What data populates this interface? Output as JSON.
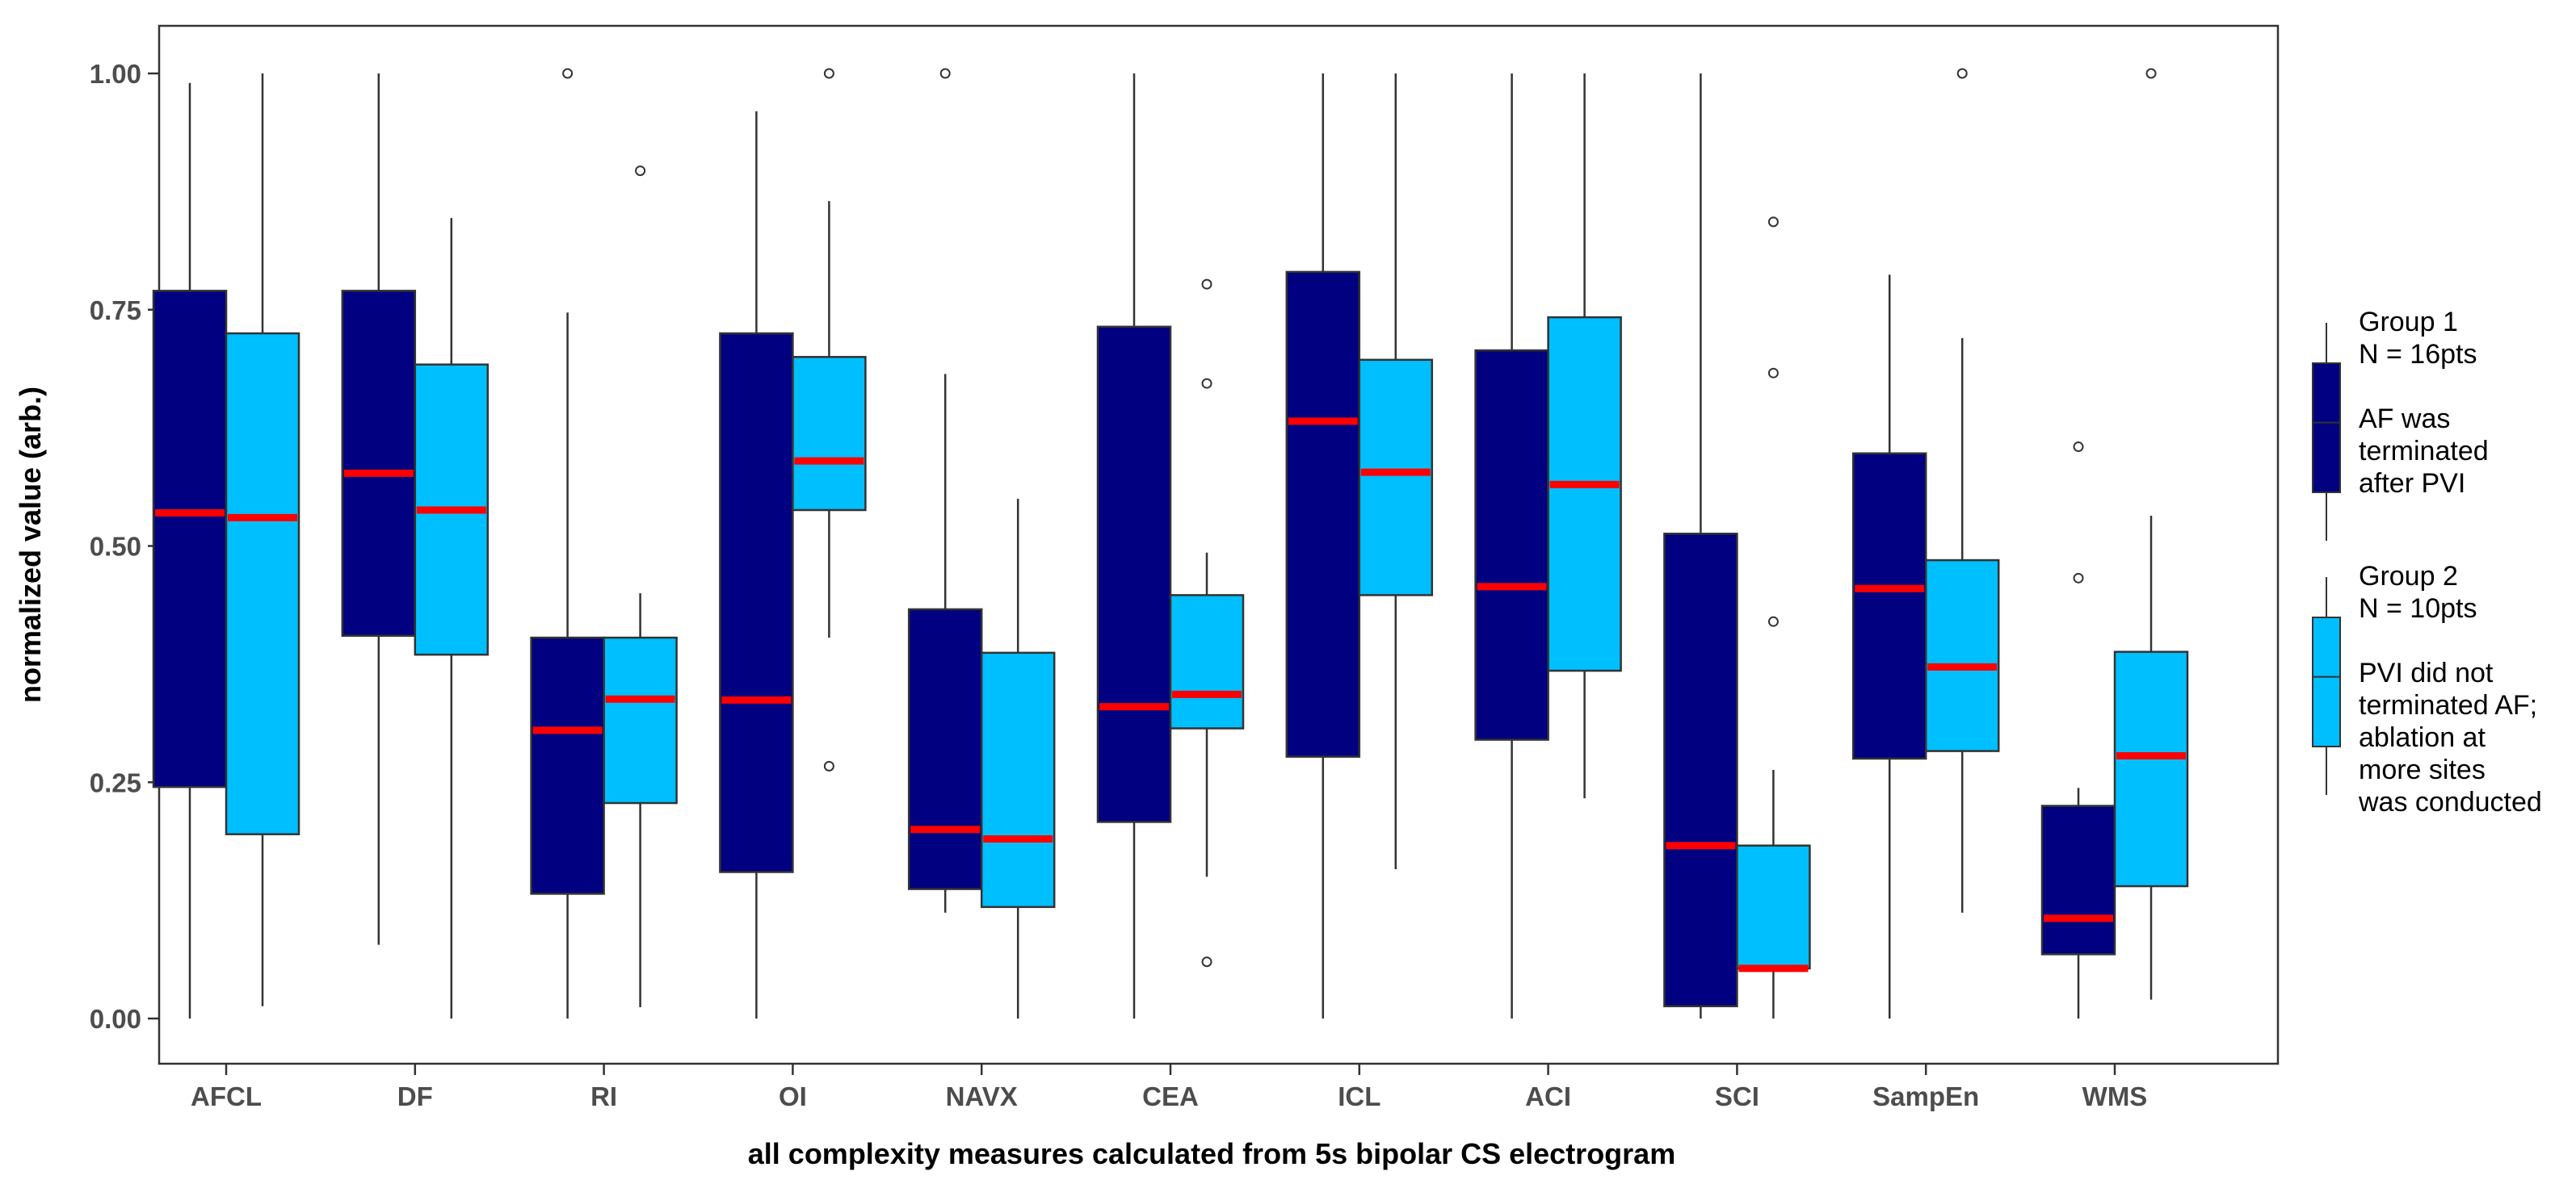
{
  "chart_data": {
    "type": "boxplot",
    "title": "",
    "xlabel": "all complexity measures calculated from 5s bipolar CS electrogram",
    "ylabel": "normalized value (arb.)",
    "ylim": [
      -0.05,
      1.05
    ],
    "yticks": [
      0.0,
      0.25,
      0.5,
      0.75,
      1.0
    ],
    "ytick_labels": [
      "0.00",
      "0.25",
      "0.50",
      "0.75",
      "1.00"
    ],
    "categories": [
      "AFCL",
      "DF",
      "RI",
      "OI",
      "NAVX",
      "CEA",
      "ICL",
      "ACI",
      "SCI",
      "SampEn",
      "WMS"
    ],
    "series": [
      {
        "name": "Group 1",
        "color": "#000080",
        "median_color": "#ff0000",
        "legend_lines": [
          "Group 1",
          " N = 16pts",
          "",
          "AF was",
          " terminated",
          "after PVI"
        ],
        "boxes": [
          {
            "whisker_low": 0.0,
            "q1": 0.245,
            "median": 0.535,
            "q3": 0.77,
            "whisker_high": 0.99,
            "outliers": []
          },
          {
            "whisker_low": 0.078,
            "q1": 0.405,
            "median": 0.577,
            "q3": 0.77,
            "whisker_high": 1.0,
            "outliers": []
          },
          {
            "whisker_low": 0.0,
            "q1": 0.132,
            "median": 0.305,
            "q3": 0.403,
            "whisker_high": 0.747,
            "outliers": [
              1.0
            ]
          },
          {
            "whisker_low": 0.0,
            "q1": 0.155,
            "median": 0.337,
            "q3": 0.725,
            "whisker_high": 0.96,
            "outliers": []
          },
          {
            "whisker_low": 0.112,
            "q1": 0.137,
            "median": 0.2,
            "q3": 0.433,
            "whisker_high": 0.682,
            "outliers": [
              1.0
            ]
          },
          {
            "whisker_low": 0.0,
            "q1": 0.208,
            "median": 0.33,
            "q3": 0.732,
            "whisker_high": 1.0,
            "outliers": []
          },
          {
            "whisker_low": 0.0,
            "q1": 0.277,
            "median": 0.632,
            "q3": 0.79,
            "whisker_high": 1.0,
            "outliers": []
          },
          {
            "whisker_low": 0.0,
            "q1": 0.295,
            "median": 0.457,
            "q3": 0.707,
            "whisker_high": 1.0,
            "outliers": []
          },
          {
            "whisker_low": 0.0,
            "q1": 0.013,
            "median": 0.183,
            "q3": 0.513,
            "whisker_high": 1.0,
            "outliers": []
          },
          {
            "whisker_low": 0.0,
            "q1": 0.275,
            "median": 0.455,
            "q3": 0.598,
            "whisker_high": 0.787,
            "outliers": []
          },
          {
            "whisker_low": 0.0,
            "q1": 0.068,
            "median": 0.106,
            "q3": 0.225,
            "whisker_high": 0.244,
            "outliers": [
              0.605,
              0.466
            ]
          }
        ]
      },
      {
        "name": "Group 2",
        "color": "#00bfff",
        "median_color": "#ff0000",
        "legend_lines": [
          "Group 2",
          " N = 10pts",
          "",
          "PVI did not",
          "terminated AF;",
          "ablation at",
          "more sites",
          "was conducted"
        ],
        "boxes": [
          {
            "whisker_low": 0.013,
            "q1": 0.195,
            "median": 0.53,
            "q3": 0.725,
            "whisker_high": 1.0,
            "outliers": []
          },
          {
            "whisker_low": 0.0,
            "q1": 0.385,
            "median": 0.538,
            "q3": 0.692,
            "whisker_high": 0.847,
            "outliers": []
          },
          {
            "whisker_low": 0.012,
            "q1": 0.228,
            "median": 0.338,
            "q3": 0.403,
            "whisker_high": 0.45,
            "outliers": [
              0.897
            ]
          },
          {
            "whisker_low": 0.403,
            "q1": 0.538,
            "median": 0.59,
            "q3": 0.7,
            "whisker_high": 0.865,
            "outliers": [
              1.0,
              0.267
            ]
          },
          {
            "whisker_low": 0.0,
            "q1": 0.118,
            "median": 0.19,
            "q3": 0.387,
            "whisker_high": 0.55,
            "outliers": []
          },
          {
            "whisker_low": 0.15,
            "q1": 0.307,
            "median": 0.343,
            "q3": 0.448,
            "whisker_high": 0.493,
            "outliers": [
              0.777,
              0.672,
              0.06
            ]
          },
          {
            "whisker_low": 0.158,
            "q1": 0.448,
            "median": 0.578,
            "q3": 0.697,
            "whisker_high": 1.0,
            "outliers": []
          },
          {
            "whisker_low": 0.233,
            "q1": 0.368,
            "median": 0.565,
            "q3": 0.742,
            "whisker_high": 1.0,
            "outliers": []
          },
          {
            "whisker_low": 0.0,
            "q1": 0.053,
            "median": 0.053,
            "q3": 0.183,
            "whisker_high": 0.263,
            "outliers": [
              0.843,
              0.683,
              0.42
            ]
          },
          {
            "whisker_low": 0.112,
            "q1": 0.283,
            "median": 0.372,
            "q3": 0.485,
            "whisker_high": 0.72,
            "outliers": [
              1.0
            ]
          },
          {
            "whisker_low": 0.02,
            "q1": 0.14,
            "median": 0.278,
            "q3": 0.388,
            "whisker_high": 0.532,
            "outliers": [
              1.0
            ]
          }
        ]
      }
    ],
    "grid": false,
    "legend_position": "right"
  }
}
